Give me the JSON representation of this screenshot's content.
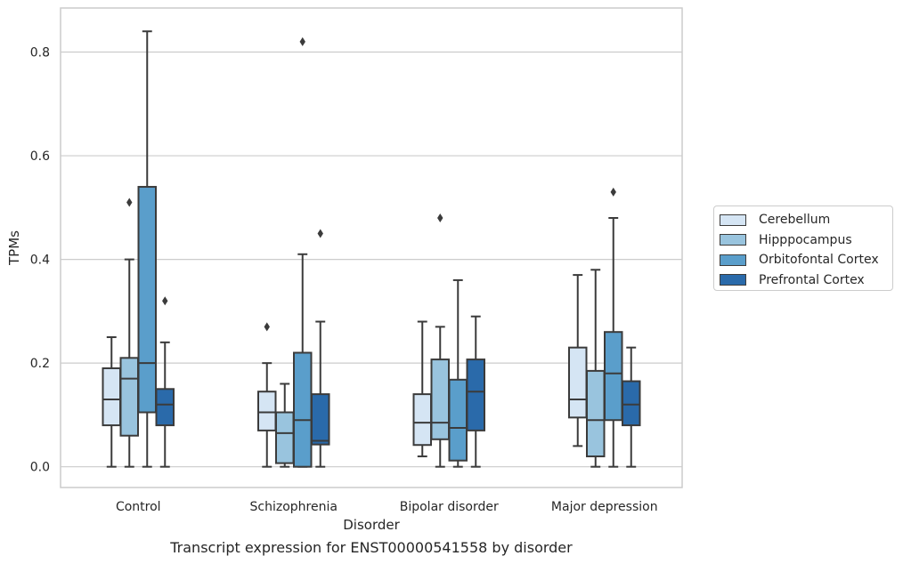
{
  "caption": "Transcript expression for ENST00000541558 by disorder",
  "chart_data": {
    "type": "box",
    "title": "",
    "xlabel": "Disorder",
    "ylabel": "TPMs",
    "ylim": [
      -0.04,
      0.885
    ],
    "yticks": [
      0.0,
      0.2,
      0.4,
      0.6,
      0.8
    ],
    "ytick_labels": [
      "0.0",
      "0.2",
      "0.4",
      "0.6",
      "0.8"
    ],
    "grid": "horizontal",
    "legend_position": "right",
    "categories": [
      "Control",
      "Schizophrenia",
      "Bipolar disorder",
      "Major depression"
    ],
    "series": [
      {
        "name": "Cerebellum",
        "color": "#d5e5f4",
        "boxes": [
          {
            "whisker_low": 0.0,
            "q1": 0.08,
            "median": 0.13,
            "q3": 0.19,
            "whisker_high": 0.25,
            "outliers": []
          },
          {
            "whisker_low": 0.0,
            "q1": 0.07,
            "median": 0.105,
            "q3": 0.145,
            "whisker_high": 0.2,
            "outliers": [
              0.27
            ]
          },
          {
            "whisker_low": 0.02,
            "q1": 0.042,
            "median": 0.085,
            "q3": 0.14,
            "whisker_high": 0.28,
            "outliers": []
          },
          {
            "whisker_low": 0.04,
            "q1": 0.095,
            "median": 0.13,
            "q3": 0.23,
            "whisker_high": 0.37,
            "outliers": []
          }
        ]
      },
      {
        "name": "Hipppocampus",
        "color": "#99c4de",
        "boxes": [
          {
            "whisker_low": 0.0,
            "q1": 0.06,
            "median": 0.17,
            "q3": 0.21,
            "whisker_high": 0.4,
            "outliers": [
              0.51
            ]
          },
          {
            "whisker_low": 0.0,
            "q1": 0.007,
            "median": 0.065,
            "q3": 0.105,
            "whisker_high": 0.16,
            "outliers": []
          },
          {
            "whisker_low": 0.0,
            "q1": 0.053,
            "median": 0.085,
            "q3": 0.207,
            "whisker_high": 0.27,
            "outliers": [
              0.48
            ]
          },
          {
            "whisker_low": 0.0,
            "q1": 0.02,
            "median": 0.09,
            "q3": 0.185,
            "whisker_high": 0.38,
            "outliers": []
          }
        ]
      },
      {
        "name": "Orbitofontal Cortex",
        "color": "#5a9ecb",
        "boxes": [
          {
            "whisker_low": 0.0,
            "q1": 0.105,
            "median": 0.2,
            "q3": 0.54,
            "whisker_high": 0.84,
            "outliers": []
          },
          {
            "whisker_low": 0.0,
            "q1": 0.0,
            "median": 0.09,
            "q3": 0.22,
            "whisker_high": 0.41,
            "outliers": [
              0.82
            ]
          },
          {
            "whisker_low": 0.0,
            "q1": 0.012,
            "median": 0.075,
            "q3": 0.168,
            "whisker_high": 0.36,
            "outliers": []
          },
          {
            "whisker_low": 0.0,
            "q1": 0.09,
            "median": 0.18,
            "q3": 0.26,
            "whisker_high": 0.48,
            "outliers": [
              0.53
            ]
          }
        ]
      },
      {
        "name": "Prefrontal Cortex",
        "color": "#2a6aaa",
        "boxes": [
          {
            "whisker_low": 0.0,
            "q1": 0.08,
            "median": 0.12,
            "q3": 0.15,
            "whisker_high": 0.24,
            "outliers": [
              0.32
            ]
          },
          {
            "whisker_low": 0.0,
            "q1": 0.043,
            "median": 0.05,
            "q3": 0.14,
            "whisker_high": 0.28,
            "outliers": [
              0.45
            ]
          },
          {
            "whisker_low": 0.0,
            "q1": 0.07,
            "median": 0.145,
            "q3": 0.207,
            "whisker_high": 0.29,
            "outliers": []
          },
          {
            "whisker_low": 0.0,
            "q1": 0.08,
            "median": 0.12,
            "q3": 0.165,
            "whisker_high": 0.23,
            "outliers": []
          }
        ]
      }
    ]
  }
}
